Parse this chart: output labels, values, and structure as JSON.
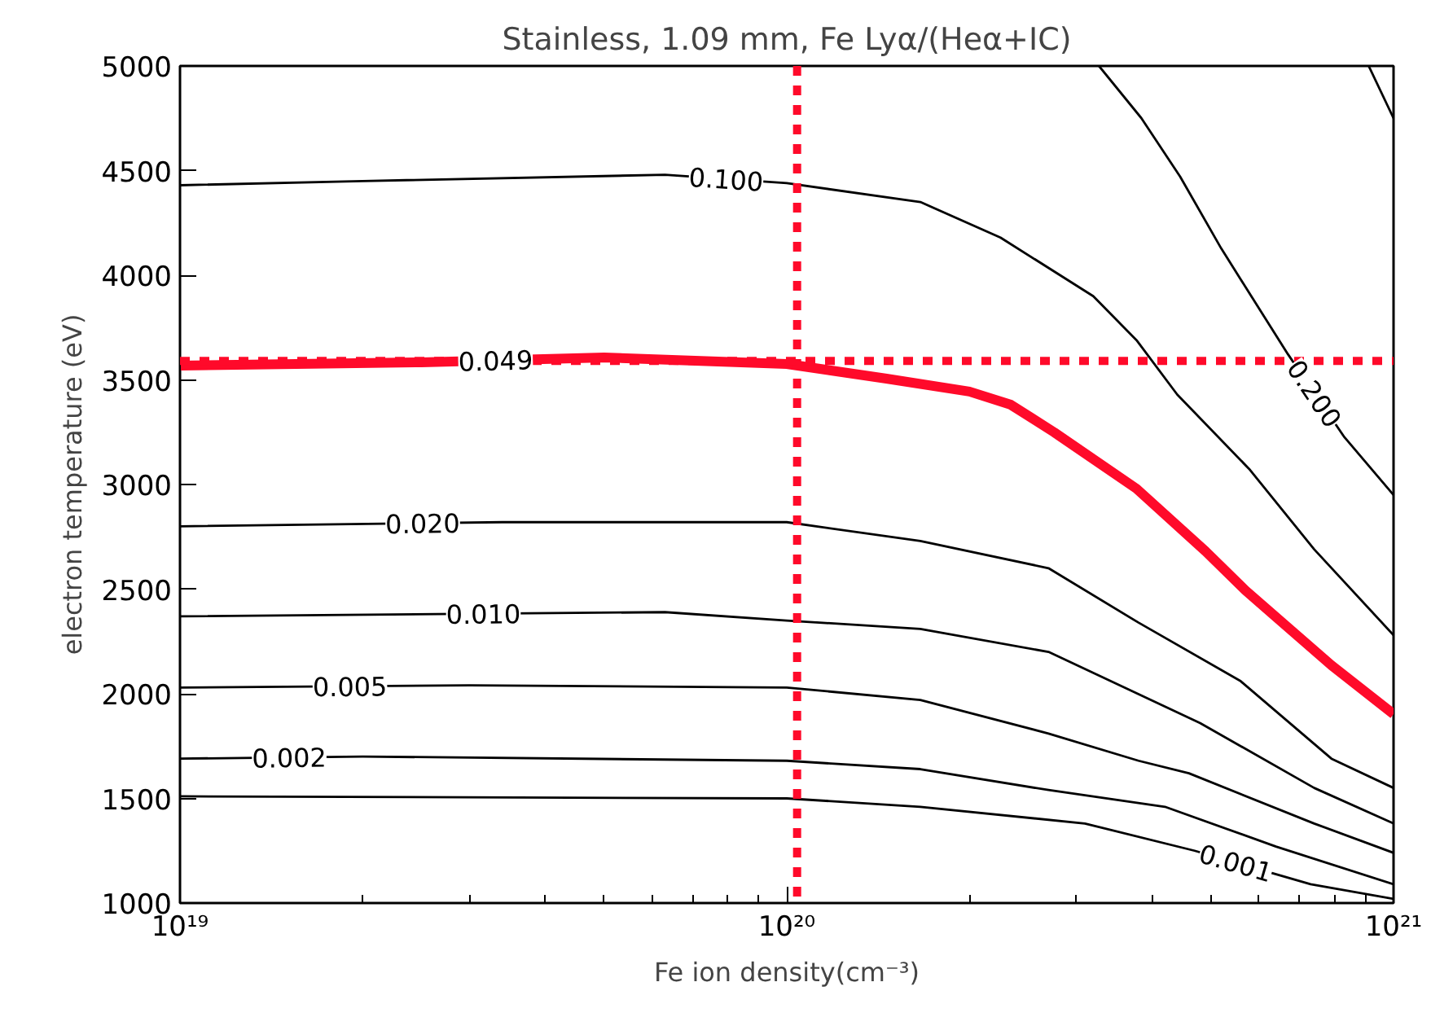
{
  "chart_data": {
    "type": "line",
    "title": "Stainless, 1.09 mm, Fe Lyα/(Heα+IC)",
    "xlabel": "Fe ion density(cm⁻³)",
    "ylabel": "electron temperature (eV)",
    "log": "x",
    "xlim": [
      1e+19,
      1e+21
    ],
    "ylim": [
      1000,
      5000
    ],
    "xticks": [
      {
        "value": 1e+19,
        "label": "10¹⁹"
      },
      {
        "value": 1e+20,
        "label": "10²⁰"
      },
      {
        "value": 1e+21,
        "label": "10²¹"
      }
    ],
    "yticks": [
      1000,
      1500,
      2000,
      2500,
      3000,
      3500,
      4000,
      4500,
      5000
    ],
    "grid": false,
    "marker": "none",
    "line_style": "solid",
    "series": [
      {
        "name": "0.001",
        "color": "#000000",
        "x": [
          1e+19,
          1e+20,
          1.66e+20,
          3.1e+20,
          4.7e+20,
          7.3e+20,
          1e+21
        ],
        "values": [
          1510,
          1500,
          1460,
          1380,
          1250,
          1090,
          1020
        ]
      },
      {
        "name": "0.002",
        "color": "#000000",
        "x": [
          1e+19,
          2e+19,
          1e+20,
          1.66e+20,
          2.7e+20,
          4.2e+20,
          6.4e+20,
          1e+21
        ],
        "values": [
          1690,
          1700,
          1680,
          1640,
          1540,
          1460,
          1270,
          1090
        ]
      },
      {
        "name": "0.005",
        "color": "#000000",
        "x": [
          1e+19,
          3e+19,
          1e+20,
          1.66e+20,
          2.7e+20,
          3.8e+20,
          4.6e+20,
          7.4e+20,
          1e+21
        ],
        "values": [
          2030,
          2040,
          2030,
          1970,
          1810,
          1680,
          1620,
          1380,
          1240
        ]
      },
      {
        "name": "0.010",
        "color": "#000000",
        "x": [
          1e+19,
          6.3e+19,
          1e+20,
          1.66e+20,
          2.7e+20,
          3.6e+20,
          4.8e+20,
          7.4e+20,
          1e+21
        ],
        "values": [
          2370,
          2390,
          2350,
          2310,
          2200,
          2030,
          1860,
          1550,
          1380
        ]
      },
      {
        "name": "0.020",
        "color": "#000000",
        "x": [
          1e+19,
          3.4e+19,
          1e+20,
          1.66e+20,
          2.7e+20,
          3.8e+20,
          5.6e+20,
          7.9e+20,
          1e+21
        ],
        "values": [
          2800,
          2820,
          2820,
          2730,
          2600,
          2340,
          2060,
          1690,
          1550
        ]
      },
      {
        "name": "0.049",
        "color": "#ff0a2a",
        "x": [
          1e+19,
          2.5e+19,
          5e+19,
          1e+20,
          1.46e+20,
          2e+20,
          2.34e+20,
          2.76e+20,
          3.77e+20,
          4.9e+20,
          5.7e+20,
          7.9e+20,
          1e+21
        ],
        "values": [
          3568,
          3584,
          3607,
          3576,
          3506,
          3444,
          3381,
          3249,
          2980,
          2681,
          2494,
          2136,
          1903
        ]
      },
      {
        "name": "0.100",
        "color": "#000000",
        "x": [
          1e+19,
          2e+19,
          6.3e+19,
          1e+20,
          1.66e+20,
          2.25e+20,
          3.2e+20,
          3.77e+20,
          4.4e+20,
          5.8e+20,
          7.4e+20,
          1e+21
        ],
        "values": [
          4430,
          4450,
          4480,
          4440,
          4350,
          4180,
          3900,
          3690,
          3430,
          3070,
          2690,
          2280
        ]
      },
      {
        "name": "0.200",
        "color": "#000000",
        "x": [
          3.27e+20,
          3.84e+20,
          4.45e+20,
          5.2e+20,
          6.7e+20,
          8.3e+20,
          1e+21
        ],
        "values": [
          5000,
          4751,
          4471,
          4128,
          3622,
          3226,
          2950
        ]
      },
      {
        "color": "#000000",
        "x": [
          9.1e+20,
          1e+21
        ],
        "values": [
          5000,
          4750
        ]
      }
    ],
    "ref_lines": [
      {
        "axis": "x",
        "value": 1.04e+20,
        "color": "#ff0a2a",
        "line_style": "dotted"
      },
      {
        "axis": "y",
        "value": 3590,
        "color": "#ff0a2a",
        "line_style": "dotted"
      }
    ]
  }
}
